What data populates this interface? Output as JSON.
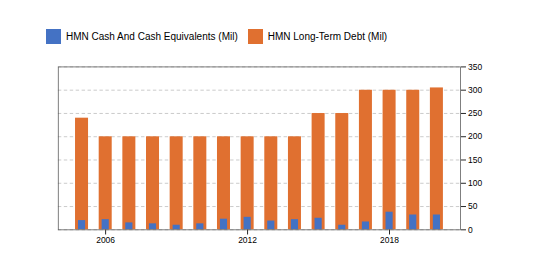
{
  "chart_data": {
    "type": "bar",
    "x": [
      2005,
      2006,
      2007,
      2008,
      2009,
      2010,
      2011,
      2012,
      2013,
      2014,
      2015,
      2016,
      2017,
      2018,
      2019,
      2020
    ],
    "series": [
      {
        "name": "HMN Cash And Cash Equivalents (Mil)",
        "color": "#4472C4",
        "values": [
          20,
          22,
          15,
          13,
          10,
          13,
          23,
          27,
          19,
          22,
          25,
          10,
          17,
          38,
          32,
          32
        ]
      },
      {
        "name": "HMN Long-Term Debt (Mil)",
        "color": "#E07030",
        "values": [
          240,
          200,
          200,
          200,
          200,
          200,
          200,
          200,
          200,
          200,
          250,
          250,
          300,
          300,
          300,
          305
        ]
      }
    ],
    "xlim": [
      2004.0,
      2021.0
    ],
    "xticks": [
      2006,
      2012,
      2018
    ],
    "ylim": [
      0,
      350
    ],
    "yticks": [
      0,
      50,
      100,
      150,
      200,
      250,
      300,
      350
    ],
    "grid": true
  }
}
